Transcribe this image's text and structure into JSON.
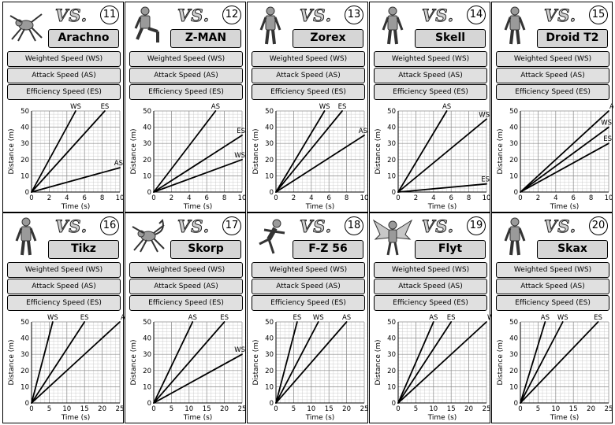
{
  "sheet": {
    "vs_text": "VS.",
    "rows": [
      "Weighted Speed (WS)",
      "Attack Speed (AS)",
      "Efficiency Speed (ES)"
    ],
    "ylabel": "Distance (m)",
    "xlabel": "Time (s)"
  },
  "cards": [
    {
      "number": "11",
      "name": "Arachno",
      "icon": "spider-robot-icon"
    },
    {
      "number": "12",
      "name": "Z-MAN",
      "icon": "kneeling-robot-icon"
    },
    {
      "number": "13",
      "name": "Zorex",
      "icon": "humanoid-robot-icon"
    },
    {
      "number": "14",
      "name": "Skell",
      "icon": "skeleton-robot-icon"
    },
    {
      "number": "15",
      "name": "Droid T2",
      "icon": "droid-robot-icon"
    },
    {
      "number": "16",
      "name": "Tikz",
      "icon": "small-robot-icon"
    },
    {
      "number": "17",
      "name": "Skorp",
      "icon": "scorpion-robot-icon"
    },
    {
      "number": "18",
      "name": "F-Z 56",
      "icon": "running-robot-icon"
    },
    {
      "number": "19",
      "name": "Flyt",
      "icon": "winged-robot-icon"
    },
    {
      "number": "20",
      "name": "Skax",
      "icon": "standing-robot-icon"
    }
  ],
  "chart_data": [
    {
      "type": "line",
      "xlabel": "Time (s)",
      "ylabel": "Distance (m)",
      "xlim": [
        0,
        10
      ],
      "ylim": [
        0,
        50
      ],
      "xticks": [
        0,
        2,
        4,
        6,
        8,
        10
      ],
      "yticks": [
        0,
        10,
        20,
        30,
        40,
        50
      ],
      "series": [
        {
          "name": "WS",
          "points": [
            [
              0,
              0
            ],
            [
              5,
              50
            ]
          ]
        },
        {
          "name": "ES",
          "points": [
            [
              0,
              0
            ],
            [
              8.3,
              50
            ]
          ]
        },
        {
          "name": "AS",
          "points": [
            [
              0,
              0
            ],
            [
              10,
              15
            ]
          ]
        }
      ]
    },
    {
      "type": "line",
      "xlabel": "Time (s)",
      "ylabel": "Distance (m)",
      "xlim": [
        0,
        10
      ],
      "ylim": [
        0,
        50
      ],
      "xticks": [
        0,
        2,
        4,
        6,
        8,
        10
      ],
      "yticks": [
        0,
        10,
        20,
        30,
        40,
        50
      ],
      "series": [
        {
          "name": "AS",
          "points": [
            [
              0,
              0
            ],
            [
              7,
              50
            ]
          ]
        },
        {
          "name": "ES",
          "points": [
            [
              0,
              0
            ],
            [
              10,
              35
            ]
          ]
        },
        {
          "name": "WS",
          "points": [
            [
              0,
              0
            ],
            [
              10,
              20
            ]
          ]
        }
      ]
    },
    {
      "type": "line",
      "xlabel": "Time (s)",
      "ylabel": "Distance (m)",
      "xlim": [
        0,
        10
      ],
      "ylim": [
        0,
        50
      ],
      "xticks": [
        0,
        2,
        4,
        6,
        8,
        10
      ],
      "yticks": [
        0,
        10,
        20,
        30,
        40,
        50
      ],
      "series": [
        {
          "name": "WS",
          "points": [
            [
              0,
              0
            ],
            [
              5.5,
              50
            ]
          ]
        },
        {
          "name": "ES",
          "points": [
            [
              0,
              0
            ],
            [
              7.5,
              50
            ]
          ]
        },
        {
          "name": "AS",
          "points": [
            [
              0,
              0
            ],
            [
              10,
              35
            ]
          ]
        }
      ]
    },
    {
      "type": "line",
      "xlabel": "Time (s)",
      "ylabel": "Distance (m)",
      "xlim": [
        0,
        10
      ],
      "ylim": [
        0,
        50
      ],
      "xticks": [
        0,
        2,
        4,
        6,
        8,
        10
      ],
      "yticks": [
        0,
        10,
        20,
        30,
        40,
        50
      ],
      "series": [
        {
          "name": "AS",
          "points": [
            [
              0,
              0
            ],
            [
              5.5,
              50
            ]
          ]
        },
        {
          "name": "WS",
          "points": [
            [
              0,
              0
            ],
            [
              10,
              45
            ]
          ]
        },
        {
          "name": "ES",
          "points": [
            [
              0,
              0
            ],
            [
              10,
              5
            ]
          ]
        }
      ]
    },
    {
      "type": "line",
      "xlabel": "Time (s)",
      "ylabel": "Distance (m)",
      "xlim": [
        0,
        10
      ],
      "ylim": [
        0,
        50
      ],
      "xticks": [
        0,
        2,
        4,
        6,
        8,
        10
      ],
      "yticks": [
        0,
        10,
        20,
        30,
        40,
        50
      ],
      "series": [
        {
          "name": "AS",
          "points": [
            [
              0,
              0
            ],
            [
              10,
              50
            ]
          ]
        },
        {
          "name": "WS",
          "points": [
            [
              0,
              0
            ],
            [
              10,
              40
            ]
          ]
        },
        {
          "name": "ES",
          "points": [
            [
              0,
              0
            ],
            [
              10,
              30
            ]
          ]
        }
      ]
    },
    {
      "type": "line",
      "xlabel": "Time (s)",
      "ylabel": "Distance (m)",
      "xlim": [
        0,
        25
      ],
      "ylim": [
        0,
        50
      ],
      "xticks": [
        0,
        5,
        10,
        15,
        20,
        25
      ],
      "yticks": [
        0,
        10,
        20,
        30,
        40,
        50
      ],
      "series": [
        {
          "name": "WS",
          "points": [
            [
              0,
              0
            ],
            [
              6,
              50
            ]
          ]
        },
        {
          "name": "ES",
          "points": [
            [
              0,
              0
            ],
            [
              15,
              50
            ]
          ]
        },
        {
          "name": "AS",
          "points": [
            [
              0,
              0
            ],
            [
              25,
              50
            ]
          ]
        }
      ]
    },
    {
      "type": "line",
      "xlabel": "Time (s)",
      "ylabel": "Distance (m)",
      "xlim": [
        0,
        25
      ],
      "ylim": [
        0,
        50
      ],
      "xticks": [
        0,
        5,
        10,
        15,
        20,
        25
      ],
      "yticks": [
        0,
        10,
        20,
        30,
        40,
        50
      ],
      "series": [
        {
          "name": "AS",
          "points": [
            [
              0,
              0
            ],
            [
              11,
              50
            ]
          ]
        },
        {
          "name": "ES",
          "points": [
            [
              0,
              0
            ],
            [
              20,
              50
            ]
          ]
        },
        {
          "name": "WS",
          "points": [
            [
              0,
              0
            ],
            [
              25,
              30
            ]
          ]
        }
      ]
    },
    {
      "type": "line",
      "xlabel": "Time (s)",
      "ylabel": "Distance (m)",
      "xlim": [
        0,
        25
      ],
      "ylim": [
        0,
        50
      ],
      "xticks": [
        0,
        5,
        10,
        15,
        20,
        25
      ],
      "yticks": [
        0,
        10,
        20,
        30,
        40,
        50
      ],
      "series": [
        {
          "name": "ES",
          "points": [
            [
              0,
              0
            ],
            [
              6,
              50
            ]
          ]
        },
        {
          "name": "WS",
          "points": [
            [
              0,
              0
            ],
            [
              12,
              50
            ]
          ]
        },
        {
          "name": "AS",
          "points": [
            [
              0,
              0
            ],
            [
              20,
              50
            ]
          ]
        }
      ]
    },
    {
      "type": "line",
      "xlabel": "Time (s)",
      "ylabel": "Distance (m)",
      "xlim": [
        0,
        25
      ],
      "ylim": [
        0,
        50
      ],
      "xticks": [
        0,
        5,
        10,
        15,
        20,
        25
      ],
      "yticks": [
        0,
        10,
        20,
        30,
        40,
        50
      ],
      "series": [
        {
          "name": "AS",
          "points": [
            [
              0,
              0
            ],
            [
              10,
              50
            ]
          ]
        },
        {
          "name": "ES",
          "points": [
            [
              0,
              0
            ],
            [
              15,
              50
            ]
          ]
        },
        {
          "name": "WS",
          "points": [
            [
              0,
              0
            ],
            [
              25,
              50
            ]
          ]
        }
      ]
    },
    {
      "type": "line",
      "xlabel": "Time (s)",
      "ylabel": "Distance (m)",
      "xlim": [
        0,
        25
      ],
      "ylim": [
        0,
        50
      ],
      "xticks": [
        0,
        5,
        10,
        15,
        20,
        25
      ],
      "yticks": [
        0,
        10,
        20,
        30,
        40,
        50
      ],
      "series": [
        {
          "name": "AS",
          "points": [
            [
              0,
              0
            ],
            [
              7,
              50
            ]
          ]
        },
        {
          "name": "WS",
          "points": [
            [
              0,
              0
            ],
            [
              12,
              50
            ]
          ]
        },
        {
          "name": "ES",
          "points": [
            [
              0,
              0
            ],
            [
              22,
              50
            ]
          ]
        }
      ]
    }
  ]
}
